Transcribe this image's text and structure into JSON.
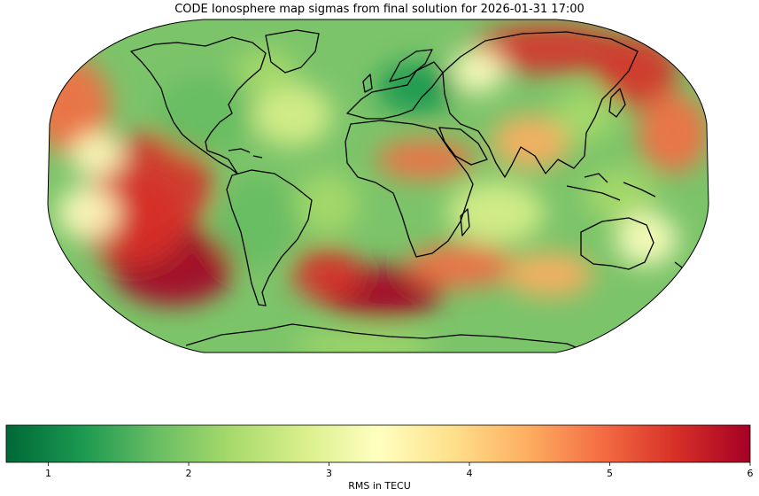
{
  "title": "CODE Ionosphere map sigmas from final solution for 2026-01-31 17:00",
  "colorbar": {
    "label": "RMS in TECU",
    "min": 0.7,
    "max": 6,
    "ticks": [
      "1",
      "2",
      "3",
      "4",
      "5",
      "6"
    ],
    "colormap": "RdYlGn_r",
    "stops": [
      "#006837",
      "#1a9850",
      "#66bd63",
      "#a6d96a",
      "#d9ef8b",
      "#ffffbf",
      "#fee08b",
      "#fdae61",
      "#f46d43",
      "#d73027",
      "#a50026"
    ]
  },
  "map": {
    "projection": "Robinson",
    "coastlines": true,
    "field": "RMS in TECU"
  }
}
